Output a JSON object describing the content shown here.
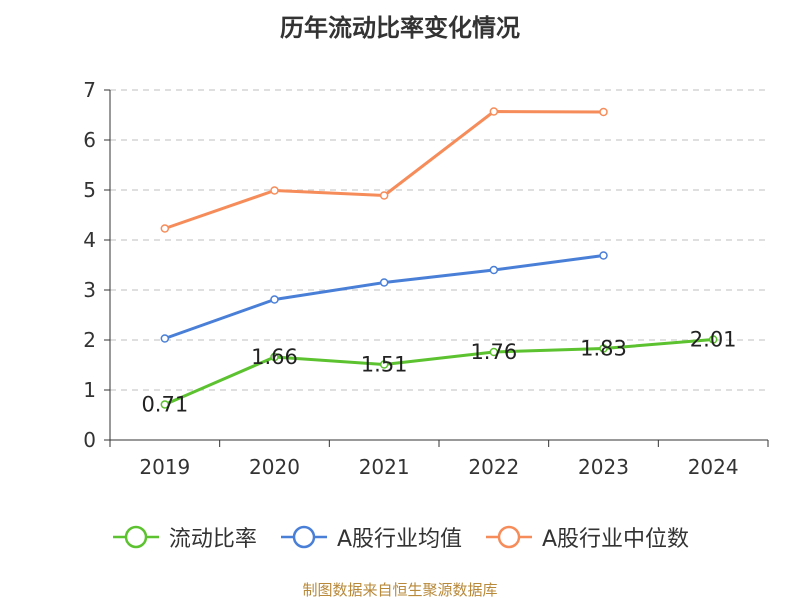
{
  "title": "历年流动比率变化情况",
  "source_note": "制图数据来自恒生聚源数据库",
  "colors": {
    "流动比率": "#5cc22f",
    "A股行业均值": "#4a7fd8",
    "A股行业中位数": "#f68c5a",
    "grid": "#cccccc",
    "axis": "#333333"
  },
  "chart_data": {
    "type": "line",
    "title": "历年流动比率变化情况",
    "xlabel": "",
    "ylabel": "",
    "categories": [
      "2019",
      "2020",
      "2021",
      "2022",
      "2023",
      "2024"
    ],
    "ylim": [
      0,
      7
    ],
    "yticks": [
      0,
      1,
      2,
      3,
      4,
      5,
      6,
      7
    ],
    "grid": true,
    "legend_position": "bottom",
    "series": [
      {
        "name": "流动比率",
        "values": [
          0.71,
          1.66,
          1.51,
          1.76,
          1.83,
          2.01
        ],
        "labels": [
          "0.71",
          "1.66",
          "1.51",
          "1.76",
          "1.83",
          "2.01"
        ]
      },
      {
        "name": "A股行业均值",
        "values": [
          2.03,
          2.81,
          3.15,
          3.4,
          3.69,
          null
        ]
      },
      {
        "name": "A股行业中位数",
        "values": [
          4.23,
          4.99,
          4.89,
          6.57,
          6.56,
          null
        ]
      }
    ]
  }
}
